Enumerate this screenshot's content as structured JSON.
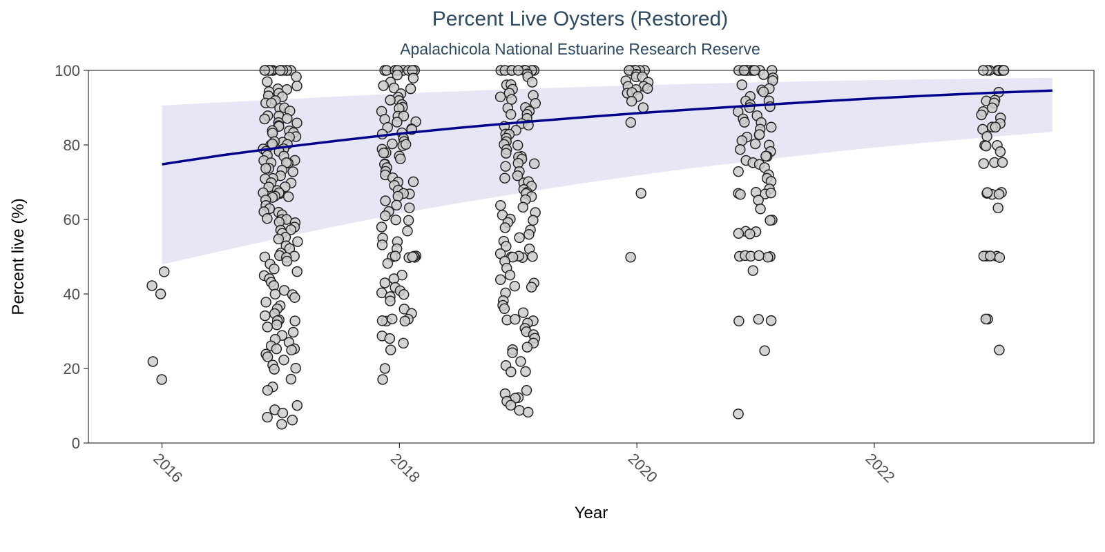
{
  "chart_data": {
    "type": "scatter",
    "title": "Percent Live Oysters (Restored)",
    "subtitle": "Apalachicola National Estuarine Research Reserve",
    "xlabel": "Year",
    "ylabel": "Percent live (%)",
    "xlim": [
      2015.38,
      2023.85
    ],
    "ylim": [
      0,
      100
    ],
    "x_ticks": [
      2016,
      2018,
      2020,
      2022
    ],
    "y_ticks": [
      0,
      20,
      40,
      60,
      80,
      100
    ],
    "grid": false,
    "legend": "none",
    "colors": {
      "title": "#2e4a62",
      "point_fill": "#cccccc",
      "point_stroke": "#222222",
      "trend_line": "#00008b",
      "ribbon": "#e6e6f5",
      "axis": "#333333"
    },
    "sample_groups": [
      {
        "year": 2016,
        "jitter": 0.1,
        "base": [
          17,
          22,
          40,
          42,
          46
        ]
      },
      {
        "year": 2017,
        "jitter": 0.15,
        "base": [
          100,
          100,
          100,
          100,
          100,
          100,
          100,
          100,
          100,
          100,
          100,
          100,
          98,
          97,
          96,
          95,
          95,
          94,
          94,
          93,
          93,
          92,
          91,
          91,
          90,
          90,
          89,
          88,
          88,
          87,
          87,
          86,
          86,
          85,
          85,
          84,
          84,
          83,
          83,
          82,
          82,
          81,
          81,
          80,
          80,
          80,
          79,
          79,
          78,
          78,
          77,
          77,
          76,
          76,
          75,
          75,
          75,
          74,
          74,
          73,
          73,
          72,
          71,
          71,
          70,
          70,
          69,
          69,
          68,
          67,
          67,
          67,
          66,
          66,
          66,
          65,
          64,
          63,
          62,
          62,
          61,
          60,
          60,
          60,
          59,
          59,
          58,
          57,
          57,
          56,
          55,
          55,
          54,
          53,
          52,
          51,
          50,
          50,
          50,
          50,
          49,
          48,
          47,
          46,
          45,
          44,
          43,
          42,
          41,
          40,
          40,
          39,
          38,
          37,
          36,
          35,
          34,
          33,
          33,
          33,
          32,
          31,
          30,
          29,
          28,
          27,
          26,
          25,
          25,
          25,
          24,
          23,
          22,
          21,
          20,
          20,
          17,
          15,
          14,
          10,
          9,
          8,
          7,
          6,
          5
        ]
      },
      {
        "year": 2018,
        "jitter": 0.15,
        "base": [
          100,
          100,
          100,
          100,
          100,
          100,
          100,
          100,
          100,
          100,
          99,
          98,
          97,
          96,
          95,
          95,
          94,
          93,
          92,
          92,
          91,
          90,
          90,
          89,
          88,
          88,
          87,
          86,
          86,
          85,
          84,
          84,
          83,
          83,
          82,
          81,
          80,
          80,
          80,
          79,
          78,
          78,
          77,
          76,
          75,
          75,
          74,
          73,
          72,
          71,
          70,
          70,
          69,
          68,
          67,
          67,
          66,
          65,
          64,
          63,
          62,
          61,
          60,
          60,
          58,
          57,
          55,
          54,
          53,
          52,
          50,
          50,
          50,
          50,
          50,
          50,
          50,
          48,
          45,
          44,
          43,
          42,
          41,
          40,
          40,
          39,
          38,
          36,
          35,
          33,
          33,
          33,
          33,
          33,
          29,
          28,
          27,
          25,
          20,
          17
        ]
      },
      {
        "year": 2019,
        "jitter": 0.15,
        "base": [
          100,
          100,
          100,
          100,
          100,
          100,
          100,
          100,
          100,
          100,
          100,
          99,
          98,
          97,
          96,
          96,
          95,
          94,
          93,
          93,
          92,
          91,
          90,
          90,
          89,
          88,
          88,
          87,
          86,
          85,
          85,
          84,
          83,
          83,
          82,
          81,
          80,
          80,
          79,
          78,
          77,
          77,
          76,
          75,
          75,
          74,
          73,
          72,
          71,
          70,
          70,
          69,
          68,
          67,
          67,
          66,
          65,
          64,
          63,
          62,
          61,
          60,
          60,
          59,
          58,
          57,
          56,
          55,
          54,
          53,
          52,
          51,
          50,
          50,
          50,
          50,
          50,
          49,
          47,
          45,
          44,
          43,
          42,
          42,
          40,
          38,
          37,
          36,
          35,
          33,
          33,
          33,
          32,
          31,
          30,
          29,
          28,
          27,
          26,
          25,
          24,
          22,
          21,
          19,
          19,
          14,
          13,
          12,
          12,
          11,
          10,
          9,
          8
        ]
      },
      {
        "year": 2020,
        "jitter": 0.1,
        "base": [
          100,
          100,
          100,
          100,
          100,
          100,
          100,
          99,
          98,
          98,
          97,
          97,
          96,
          96,
          95,
          95,
          94,
          94,
          93,
          92,
          90,
          86,
          67,
          50
        ]
      },
      {
        "year": 2021,
        "jitter": 0.15,
        "base": [
          100,
          100,
          100,
          100,
          100,
          100,
          100,
          100,
          100,
          100,
          100,
          99,
          98,
          97,
          96,
          95,
          95,
          94,
          93,
          92,
          92,
          91,
          90,
          90,
          89,
          88,
          87,
          86,
          86,
          85,
          84,
          83,
          83,
          82,
          81,
          80,
          80,
          79,
          78,
          77,
          77,
          76,
          75,
          75,
          74,
          73,
          72,
          71,
          70,
          68,
          67,
          67,
          67,
          67,
          67,
          65,
          63,
          60,
          60,
          57,
          57,
          56,
          56,
          50,
          50,
          50,
          50,
          50,
          50,
          46,
          33,
          33,
          33,
          25,
          8
        ]
      },
      {
        "year": 2023,
        "jitter": 0.1,
        "base": [
          100,
          100,
          100,
          100,
          100,
          100,
          100,
          100,
          100,
          100,
          100,
          100,
          94,
          92,
          92,
          91,
          90,
          89,
          88,
          87,
          86,
          85,
          85,
          84,
          82,
          80,
          80,
          80,
          78,
          75,
          75,
          75,
          67,
          67,
          67,
          67,
          67,
          63,
          50,
          50,
          50,
          50,
          50,
          33,
          33,
          25
        ]
      }
    ],
    "trend": {
      "x": [
        2016.0,
        2016.5,
        2017.0,
        2017.5,
        2018.0,
        2018.5,
        2019.0,
        2019.5,
        2020.0,
        2020.5,
        2021.0,
        2021.5,
        2022.0,
        2022.5,
        2023.0,
        2023.5
      ],
      "fit": [
        74.8,
        77.2,
        79.3,
        81.2,
        83.0,
        84.6,
        86.0,
        87.3,
        88.5,
        89.6,
        90.6,
        91.6,
        92.5,
        93.3,
        94.0,
        94.6
      ],
      "lower": [
        47.9,
        51.5,
        55.1,
        58.4,
        61.6,
        64.4,
        67.0,
        69.5,
        71.8,
        73.9,
        75.8,
        77.6,
        79.3,
        80.8,
        82.2,
        83.5
      ],
      "upper": [
        90.6,
        91.4,
        92.2,
        93.0,
        93.8,
        94.4,
        95.0,
        95.5,
        96.0,
        96.4,
        96.8,
        97.1,
        97.4,
        97.6,
        97.8,
        98.0
      ]
    }
  }
}
